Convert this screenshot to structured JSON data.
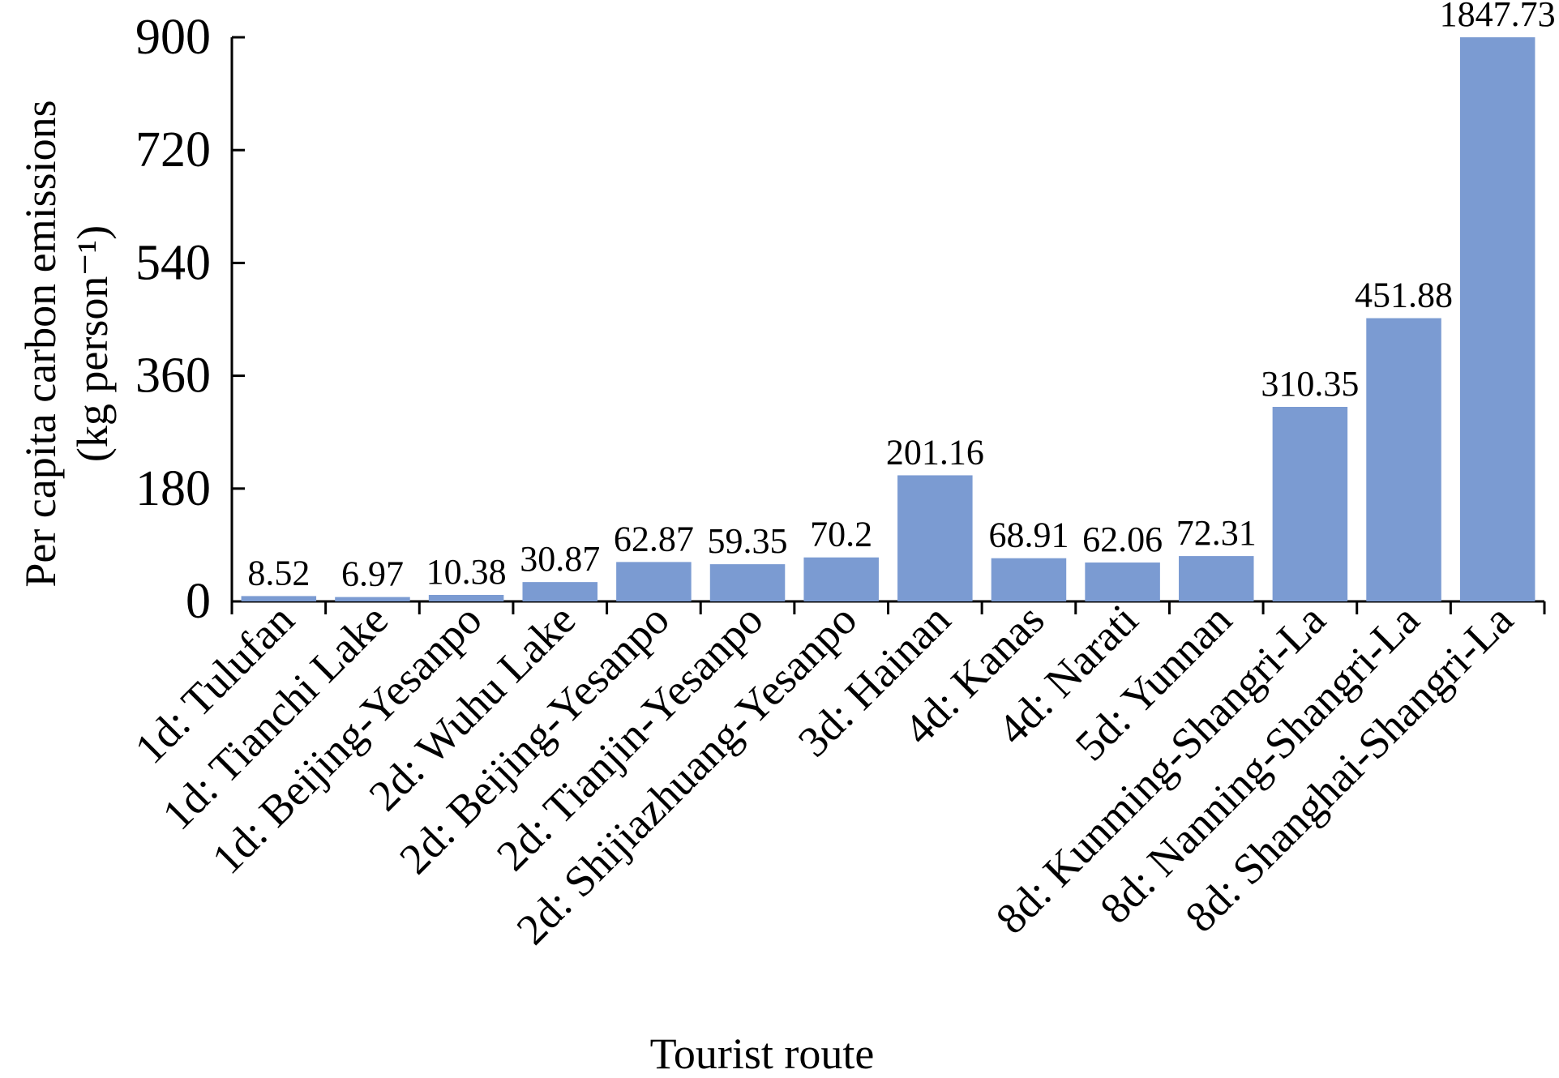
{
  "chart_data": {
    "type": "bar",
    "xlabel": "Tourist route",
    "ylabel": "Per capita carbon emissions",
    "ylabel_unit": "(kg person⁻¹)",
    "ylim": [
      0,
      900
    ],
    "yticks": [
      "0",
      "180",
      "360",
      "540",
      "720",
      "900"
    ],
    "grid": false,
    "bar_color": "#7b9bd2",
    "categories": [
      "1d: Tulufan",
      "1d: Tianchi Lake",
      "1d: Beijing-Yesanpo",
      "2d: Wuhu Lake",
      "2d: Beijing-Yesanpo",
      "2d: Tianjin-Yesanpo",
      "2d: Shijiazhuang-Yesanpo",
      "3d: Hainan",
      "4d: Kanas",
      "4d: Narati",
      "5d: Yunnan",
      "8d: Kunming-Shangri-La",
      "8d: Nanning-Shangri-La",
      "8d: Shanghai-Shangri-La"
    ],
    "values": [
      8.52,
      6.97,
      10.38,
      30.87,
      62.87,
      59.35,
      70.2,
      201.16,
      68.91,
      62.06,
      72.31,
      310.35,
      451.88,
      1847.73
    ],
    "data_labels": [
      "8.52",
      "6.97",
      "10.38",
      "30.87",
      "62.87",
      "59.35",
      "70.2",
      "201.16",
      "68.91",
      "62.06",
      "72.31",
      "310.35",
      "451.88",
      "1847.73"
    ]
  }
}
